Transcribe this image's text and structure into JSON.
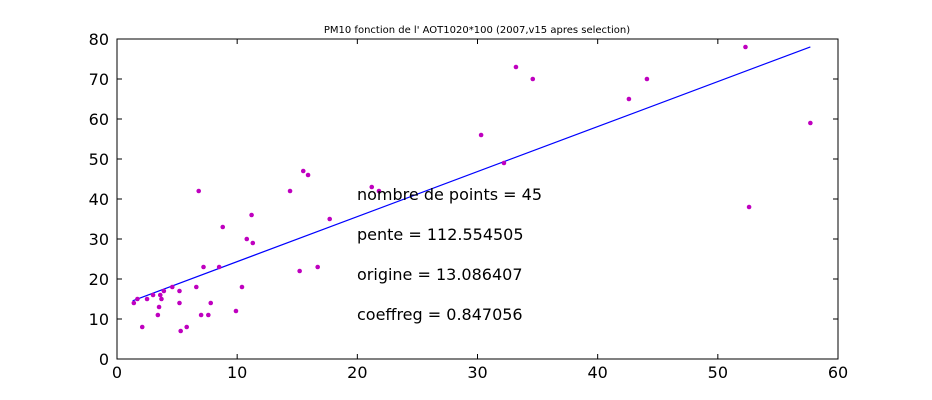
{
  "chart_data": {
    "type": "scatter",
    "title": "PM10 fonction de l' AOT1020*100 (2007,v15 apres selection)",
    "xlabel": "",
    "ylabel": "",
    "xlim": [
      0,
      60
    ],
    "ylim": [
      0,
      80
    ],
    "xticks": [
      0,
      10,
      20,
      30,
      40,
      50,
      60
    ],
    "yticks": [
      0,
      10,
      20,
      30,
      40,
      50,
      60,
      70,
      80
    ],
    "grid": false,
    "legend": "none",
    "series": [
      {
        "kind": "points",
        "color": "#bf00bf",
        "points": [
          [
            1.4,
            14
          ],
          [
            1.7,
            15
          ],
          [
            2.1,
            8
          ],
          [
            2.5,
            15
          ],
          [
            3.0,
            16
          ],
          [
            3.4,
            11
          ],
          [
            3.5,
            13
          ],
          [
            3.6,
            16
          ],
          [
            3.7,
            15
          ],
          [
            3.9,
            17
          ],
          [
            4.6,
            18
          ],
          [
            5.2,
            17
          ],
          [
            5.2,
            14
          ],
          [
            5.3,
            7
          ],
          [
            5.8,
            8
          ],
          [
            6.6,
            18
          ],
          [
            6.8,
            42
          ],
          [
            7.0,
            11
          ],
          [
            7.2,
            23
          ],
          [
            7.6,
            11
          ],
          [
            7.8,
            14
          ],
          [
            8.5,
            23
          ],
          [
            8.8,
            33
          ],
          [
            9.9,
            12
          ],
          [
            10.4,
            18
          ],
          [
            10.8,
            30
          ],
          [
            11.2,
            36
          ],
          [
            11.3,
            29
          ],
          [
            14.4,
            42
          ],
          [
            15.2,
            22
          ],
          [
            15.5,
            47
          ],
          [
            15.9,
            46
          ],
          [
            16.7,
            23
          ],
          [
            17.7,
            35
          ],
          [
            21.2,
            43
          ],
          [
            21.8,
            42
          ],
          [
            30.3,
            56
          ],
          [
            32.2,
            49
          ],
          [
            33.2,
            73
          ],
          [
            34.6,
            70
          ],
          [
            42.6,
            65
          ],
          [
            44.1,
            70
          ],
          [
            52.3,
            78
          ],
          [
            52.6,
            38
          ],
          [
            57.7,
            59
          ]
        ]
      },
      {
        "kind": "fit-line",
        "color": "#0000ff",
        "points": [
          [
            1.3,
            14.55
          ],
          [
            57.7,
            78.03
          ]
        ]
      }
    ],
    "annotations": [
      "nombre de points = 45",
      "pente = 112.554505",
      "origine = 13.086407",
      "coeffreg = 0.847056"
    ]
  }
}
